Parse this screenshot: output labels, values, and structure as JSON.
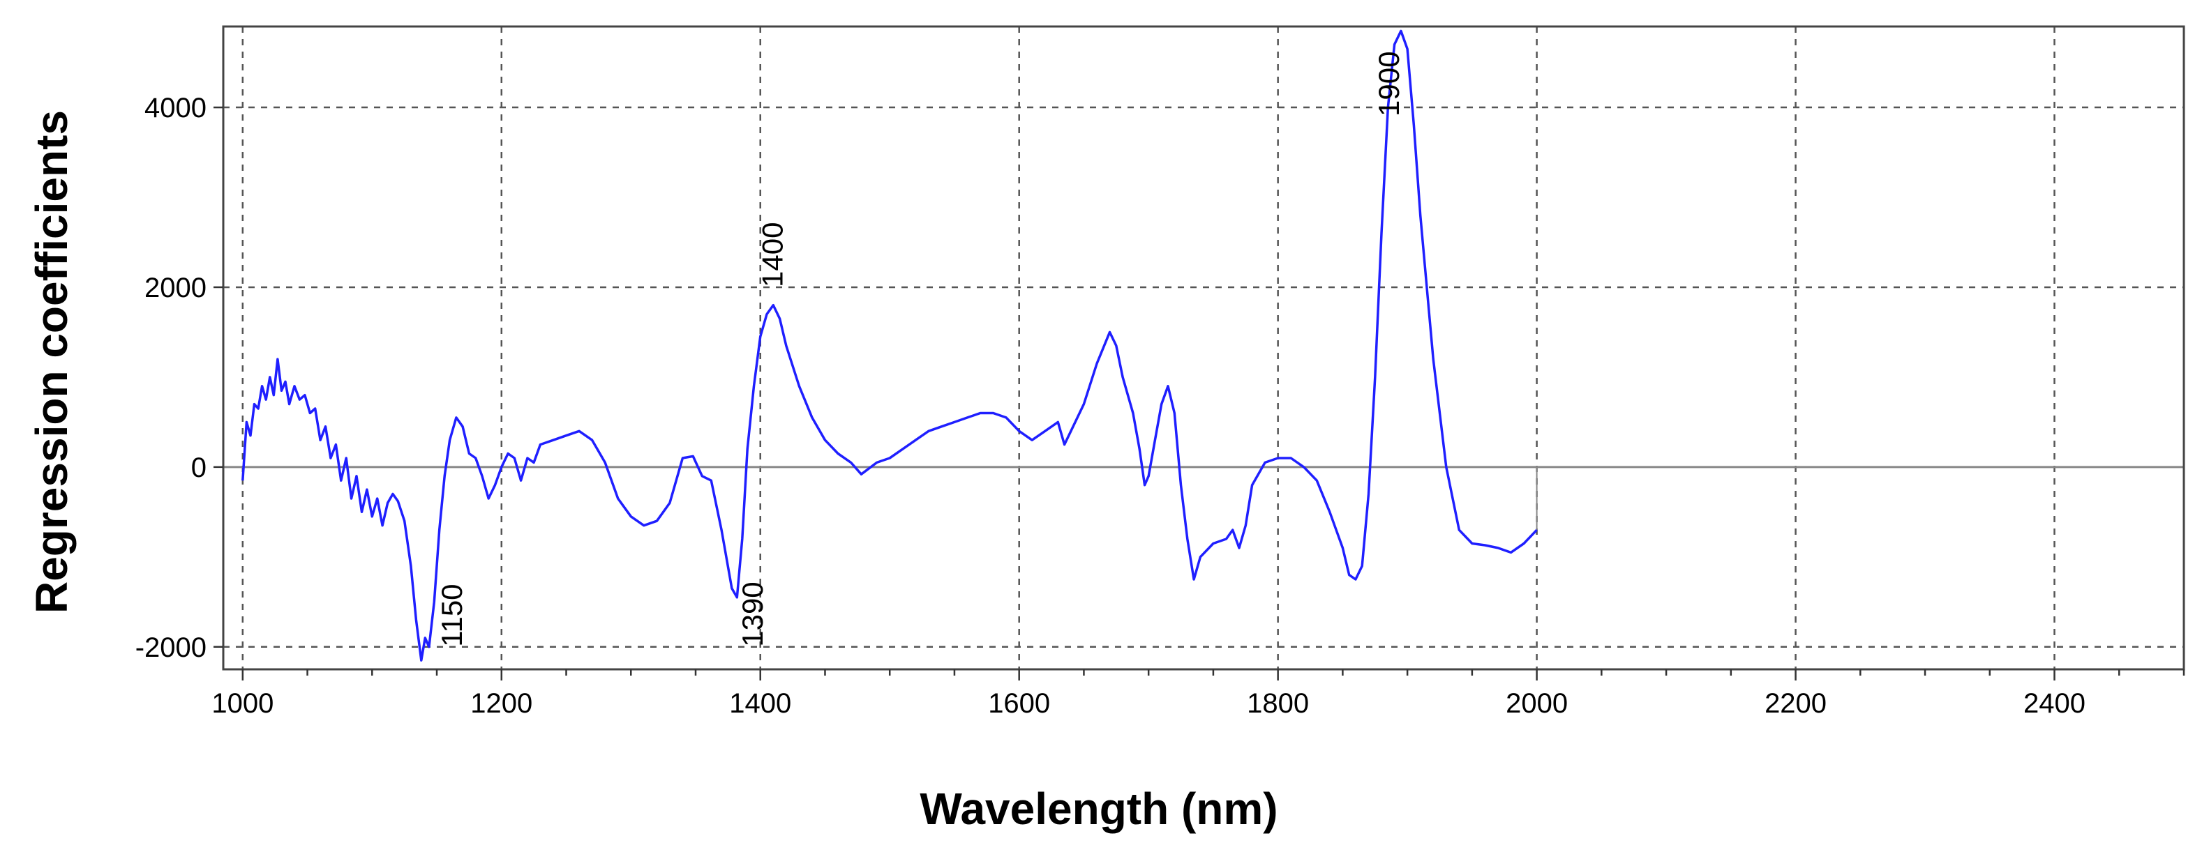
{
  "chart_data": {
    "type": "line",
    "title": "",
    "xlabel": "Wavelength (nm)",
    "ylabel": "Regression coefficients",
    "xlim": [
      985,
      2500
    ],
    "ylim": [
      -2250,
      4900
    ],
    "xticks": [
      1000,
      1200,
      1400,
      1600,
      1800,
      2000,
      2200,
      2400
    ],
    "yticks": [
      -2000,
      0,
      2000,
      4000
    ],
    "grid": true,
    "legend": "none",
    "line_color": "#1f1fff",
    "series": [
      {
        "values": [
          [
            1000,
            -150
          ],
          [
            1003,
            500
          ],
          [
            1006,
            350
          ],
          [
            1009,
            700
          ],
          [
            1012,
            650
          ],
          [
            1015,
            900
          ],
          [
            1018,
            750
          ],
          [
            1021,
            1000
          ],
          [
            1024,
            800
          ],
          [
            1027,
            1200
          ],
          [
            1030,
            850
          ],
          [
            1033,
            950
          ],
          [
            1036,
            700
          ],
          [
            1040,
            900
          ],
          [
            1044,
            750
          ],
          [
            1048,
            800
          ],
          [
            1052,
            600
          ],
          [
            1056,
            650
          ],
          [
            1060,
            300
          ],
          [
            1064,
            450
          ],
          [
            1068,
            100
          ],
          [
            1072,
            250
          ],
          [
            1076,
            -150
          ],
          [
            1080,
            100
          ],
          [
            1084,
            -350
          ],
          [
            1088,
            -100
          ],
          [
            1092,
            -500
          ],
          [
            1096,
            -250
          ],
          [
            1100,
            -550
          ],
          [
            1104,
            -350
          ],
          [
            1108,
            -650
          ],
          [
            1112,
            -400
          ],
          [
            1116,
            -300
          ],
          [
            1120,
            -380
          ],
          [
            1125,
            -600
          ],
          [
            1130,
            -1100
          ],
          [
            1134,
            -1700
          ],
          [
            1138,
            -2150
          ],
          [
            1141,
            -1900
          ],
          [
            1144,
            -2000
          ],
          [
            1148,
            -1500
          ],
          [
            1152,
            -700
          ],
          [
            1156,
            -100
          ],
          [
            1160,
            300
          ],
          [
            1165,
            550
          ],
          [
            1170,
            450
          ],
          [
            1175,
            150
          ],
          [
            1180,
            100
          ],
          [
            1185,
            -100
          ],
          [
            1190,
            -350
          ],
          [
            1195,
            -200
          ],
          [
            1200,
            0
          ],
          [
            1205,
            150
          ],
          [
            1210,
            100
          ],
          [
            1215,
            -150
          ],
          [
            1220,
            100
          ],
          [
            1225,
            50
          ],
          [
            1230,
            250
          ],
          [
            1240,
            300
          ],
          [
            1250,
            350
          ],
          [
            1260,
            400
          ],
          [
            1270,
            300
          ],
          [
            1280,
            50
          ],
          [
            1290,
            -350
          ],
          [
            1300,
            -550
          ],
          [
            1310,
            -650
          ],
          [
            1320,
            -600
          ],
          [
            1330,
            -400
          ],
          [
            1340,
            100
          ],
          [
            1348,
            120
          ],
          [
            1355,
            -100
          ],
          [
            1362,
            -150
          ],
          [
            1370,
            -700
          ],
          [
            1378,
            -1350
          ],
          [
            1382,
            -1450
          ],
          [
            1386,
            -800
          ],
          [
            1390,
            200
          ],
          [
            1395,
            900
          ],
          [
            1400,
            1450
          ],
          [
            1405,
            1700
          ],
          [
            1410,
            1800
          ],
          [
            1415,
            1650
          ],
          [
            1420,
            1350
          ],
          [
            1430,
            900
          ],
          [
            1440,
            550
          ],
          [
            1450,
            300
          ],
          [
            1460,
            150
          ],
          [
            1470,
            50
          ],
          [
            1478,
            -80
          ],
          [
            1490,
            50
          ],
          [
            1500,
            100
          ],
          [
            1510,
            200
          ],
          [
            1520,
            300
          ],
          [
            1530,
            400
          ],
          [
            1540,
            450
          ],
          [
            1550,
            500
          ],
          [
            1560,
            550
          ],
          [
            1570,
            600
          ],
          [
            1580,
            600
          ],
          [
            1590,
            550
          ],
          [
            1600,
            400
          ],
          [
            1610,
            300
          ],
          [
            1620,
            400
          ],
          [
            1630,
            500
          ],
          [
            1635,
            250
          ],
          [
            1640,
            400
          ],
          [
            1650,
            700
          ],
          [
            1660,
            1150
          ],
          [
            1670,
            1500
          ],
          [
            1675,
            1350
          ],
          [
            1680,
            1000
          ],
          [
            1688,
            600
          ],
          [
            1693,
            200
          ],
          [
            1697,
            -200
          ],
          [
            1700,
            -100
          ],
          [
            1705,
            300
          ],
          [
            1710,
            700
          ],
          [
            1715,
            900
          ],
          [
            1720,
            600
          ],
          [
            1725,
            -200
          ],
          [
            1730,
            -800
          ],
          [
            1735,
            -1250
          ],
          [
            1740,
            -1000
          ],
          [
            1750,
            -850
          ],
          [
            1760,
            -800
          ],
          [
            1765,
            -700
          ],
          [
            1770,
            -900
          ],
          [
            1775,
            -650
          ],
          [
            1780,
            -200
          ],
          [
            1790,
            50
          ],
          [
            1800,
            100
          ],
          [
            1810,
            100
          ],
          [
            1820,
            0
          ],
          [
            1830,
            -150
          ],
          [
            1840,
            -500
          ],
          [
            1850,
            -900
          ],
          [
            1855,
            -1200
          ],
          [
            1860,
            -1250
          ],
          [
            1865,
            -1100
          ],
          [
            1870,
            -300
          ],
          [
            1875,
            1000
          ],
          [
            1880,
            2600
          ],
          [
            1885,
            4000
          ],
          [
            1890,
            4700
          ],
          [
            1895,
            4850
          ],
          [
            1900,
            4650
          ],
          [
            1905,
            3800
          ],
          [
            1910,
            2800
          ],
          [
            1920,
            1200
          ],
          [
            1930,
            0
          ],
          [
            1940,
            -700
          ],
          [
            1950,
            -850
          ],
          [
            1960,
            -870
          ],
          [
            1970,
            -900
          ],
          [
            1980,
            -950
          ],
          [
            1990,
            -850
          ],
          [
            2000,
            -700
          ]
        ]
      }
    ],
    "annotations": [
      {
        "text": "1150",
        "x": 1150,
        "y": -2000
      },
      {
        "text": "1390",
        "x": 1390,
        "y": -2000
      },
      {
        "text": "1400",
        "x": 1400,
        "y": 2000
      },
      {
        "text": "1900",
        "x": 1900,
        "y": 3900
      }
    ]
  }
}
